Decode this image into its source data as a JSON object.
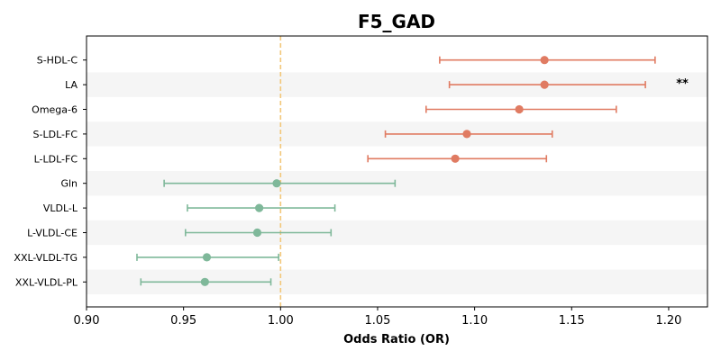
{
  "chart_data": {
    "type": "forest",
    "title": "F5_GAD",
    "xlabel": "Odds Ratio (OR)",
    "ylabel": "",
    "xlim": [
      0.9,
      1.22
    ],
    "xticks": [
      0.9,
      0.95,
      1.0,
      1.05,
      1.1,
      1.15,
      1.2
    ],
    "xtick_labels": [
      "0.90",
      "0.95",
      "1.00",
      "1.05",
      "1.10",
      "1.15",
      "1.20"
    ],
    "reference_line": 1.0,
    "grid": false,
    "colors": {
      "positive": "#E07B62",
      "negative": "#7FB89A",
      "reference": "#F2C77A",
      "band": "#F5F5F5"
    },
    "rows": [
      {
        "label": "S-HDL-C",
        "or": 1.136,
        "low": 1.082,
        "high": 1.193,
        "group": "positive",
        "sig": ""
      },
      {
        "label": "LA",
        "or": 1.136,
        "low": 1.087,
        "high": 1.188,
        "group": "positive",
        "sig": "**"
      },
      {
        "label": "Omega-6",
        "or": 1.123,
        "low": 1.075,
        "high": 1.173,
        "group": "positive",
        "sig": ""
      },
      {
        "label": "S-LDL-FC",
        "or": 1.096,
        "low": 1.054,
        "high": 1.14,
        "group": "positive",
        "sig": ""
      },
      {
        "label": "L-LDL-FC",
        "or": 1.09,
        "low": 1.045,
        "high": 1.137,
        "group": "positive",
        "sig": ""
      },
      {
        "label": "Gln",
        "or": 0.998,
        "low": 0.94,
        "high": 1.059,
        "group": "negative",
        "sig": ""
      },
      {
        "label": "VLDL-L",
        "or": 0.989,
        "low": 0.952,
        "high": 1.028,
        "group": "negative",
        "sig": ""
      },
      {
        "label": "L-VLDL-CE",
        "or": 0.988,
        "low": 0.951,
        "high": 1.026,
        "group": "negative",
        "sig": ""
      },
      {
        "label": "XXL-VLDL-TG",
        "or": 0.962,
        "low": 0.926,
        "high": 0.999,
        "group": "negative",
        "sig": ""
      },
      {
        "label": "XXL-VLDL-PL",
        "or": 0.961,
        "low": 0.928,
        "high": 0.995,
        "group": "negative",
        "sig": ""
      }
    ]
  }
}
